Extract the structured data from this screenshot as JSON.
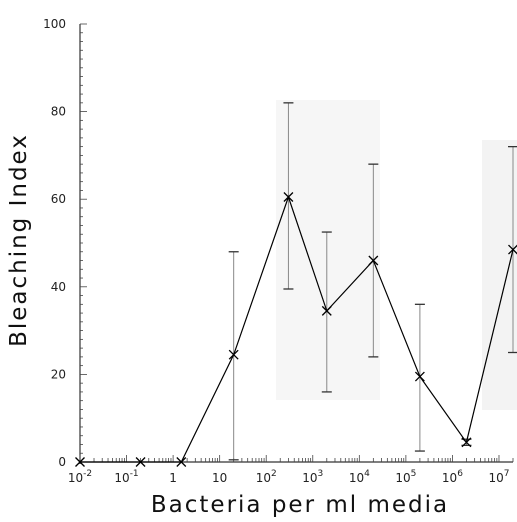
{
  "chart_data": {
    "type": "line",
    "title": "",
    "xlabel": "Bacteria per ml media",
    "ylabel": "Bleaching Index",
    "x_scale": "log10",
    "xlim": [
      0.01,
      20000000
    ],
    "ylim": [
      0,
      100
    ],
    "y_ticks": [
      0,
      20,
      40,
      60,
      80,
      100
    ],
    "x_ticks": [
      {
        "value": 0.01,
        "base": "10",
        "exp": "-2"
      },
      {
        "value": 0.1,
        "base": "10",
        "exp": "-1"
      },
      {
        "value": 1,
        "base": "1",
        "exp": ""
      },
      {
        "value": 10,
        "base": "10",
        "exp": ""
      },
      {
        "value": 100,
        "base": "10",
        "exp": "2"
      },
      {
        "value": 1000,
        "base": "10",
        "exp": "3"
      },
      {
        "value": 10000,
        "base": "10",
        "exp": "4"
      },
      {
        "value": 100000,
        "base": "10",
        "exp": "5"
      },
      {
        "value": 1000000,
        "base": "10",
        "exp": "6"
      },
      {
        "value": 10000000,
        "base": "10",
        "exp": "7"
      }
    ],
    "grid": false,
    "series": [
      {
        "marker": "x",
        "color": "#000000",
        "points": [
          {
            "x": 0.01,
            "y": 0
          },
          {
            "x": 0.2,
            "y": 0
          },
          {
            "x": 1.5,
            "y": 0
          },
          {
            "x": 20,
            "y": 24.5,
            "err_low": 0.5,
            "err_high": 48
          },
          {
            "x": 300,
            "y": 60.5,
            "err_low": 39.5,
            "err_high": 82
          },
          {
            "x": 2000,
            "y": 34.5,
            "err_low": 16,
            "err_high": 52.5
          },
          {
            "x": 20000,
            "y": 46,
            "err_low": 24,
            "err_high": 68
          },
          {
            "x": 200000,
            "y": 19.5,
            "err_low": 2.5,
            "err_high": 36
          },
          {
            "x": 2000000,
            "y": 4.5,
            "err_low": 3.8,
            "err_high": 5.2
          },
          {
            "x": 20000000,
            "y": 48.5,
            "err_low": 25,
            "err_high": 72
          }
        ]
      }
    ]
  }
}
